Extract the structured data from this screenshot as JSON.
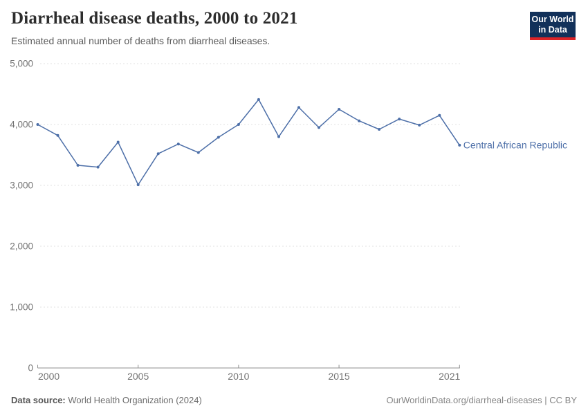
{
  "header": {
    "title": "Diarrheal disease deaths, 2000 to 2021",
    "subtitle": "Estimated annual number of deaths from diarrheal diseases.",
    "logo": {
      "line1": "Our World",
      "line2": "in Data",
      "bg_color": "#12315a",
      "accent_color": "#dc2327"
    }
  },
  "chart_data": {
    "type": "line",
    "title": "Diarrheal disease deaths, 2000 to 2021",
    "subtitle": "Estimated annual number of deaths from diarrheal diseases.",
    "xlabel": "",
    "ylabel": "",
    "x": [
      2000,
      2001,
      2002,
      2003,
      2004,
      2005,
      2006,
      2007,
      2008,
      2009,
      2010,
      2011,
      2012,
      2013,
      2014,
      2015,
      2016,
      2017,
      2018,
      2019,
      2020,
      2021
    ],
    "series": [
      {
        "name": "Central African Republic",
        "color": "#4d6fa8",
        "values": [
          4000,
          3820,
          3330,
          3300,
          3710,
          3010,
          3520,
          3680,
          3540,
          3790,
          4000,
          4410,
          3800,
          4280,
          3950,
          4250,
          4060,
          3920,
          4090,
          3990,
          4150,
          3660
        ]
      }
    ],
    "xlim": [
      2000,
      2021
    ],
    "ylim": [
      0,
      5000
    ],
    "x_ticks": [
      2000,
      2005,
      2010,
      2015,
      2021
    ],
    "y_ticks": [
      0,
      1000,
      2000,
      3000,
      4000,
      5000
    ],
    "grid": "horizontal dashed",
    "legend": "line-end label",
    "colors": {
      "grid": "#e2e2e2",
      "axis": "#8f8f8f",
      "tick_label": "#737373"
    }
  },
  "footer": {
    "source_label": "Data source:",
    "source_text": " World Health Organization (2024)",
    "attribution": "OurWorldinData.org/diarrheal-diseases | CC BY"
  }
}
